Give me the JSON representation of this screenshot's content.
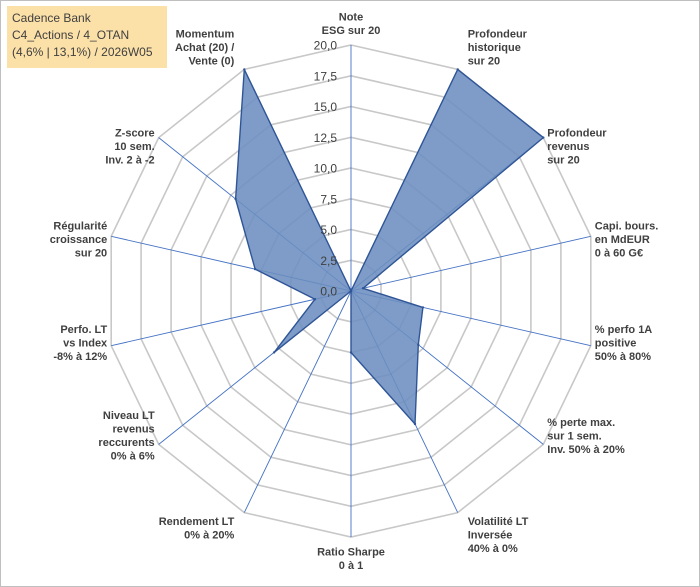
{
  "title_lines": [
    "Cadence Bank",
    "C4_Actions / 4_OTAN",
    "(4,6% | 13,1%) / 2026W05"
  ],
  "colors": {
    "fill": "#6c8ebf",
    "stroke": "#2f5597",
    "grid": "#c8c8c8",
    "spoke": "#4472c4",
    "title_bg": "#fbe0a8"
  },
  "chart_data": {
    "type": "radar",
    "title": "",
    "range": [
      0,
      20
    ],
    "tick_step": 2.5,
    "tick_labels": [
      "0,0",
      "2,5",
      "5,0",
      "7,5",
      "10,0",
      "12,5",
      "15,0",
      "17,5",
      "20,0"
    ],
    "axes": [
      {
        "lines": [
          "Note",
          "ESG sur 20"
        ]
      },
      {
        "lines": [
          "Profondeur",
          "historique",
          "sur 20"
        ]
      },
      {
        "lines": [
          "Profondeur",
          "revenus",
          "sur 20"
        ]
      },
      {
        "lines": [
          "Capi. bours.",
          "en MdEUR",
          "0 à 60 G€"
        ]
      },
      {
        "lines": [
          "% perfo 1A",
          "positive",
          "50% à 80%"
        ]
      },
      {
        "lines": [
          "% perte max.",
          "sur 1 sem.",
          "Inv. 50% à 20%"
        ]
      },
      {
        "lines": [
          "Volatilité LT",
          "Inversée",
          "40% à 0%"
        ]
      },
      {
        "lines": [
          "Ratio Sharpe",
          "0 à 1"
        ]
      },
      {
        "lines": [
          "Rendement LT",
          "0% à 20%"
        ]
      },
      {
        "lines": [
          "Niveau LT",
          "revenus",
          "reccurents",
          "0% à 6%"
        ]
      },
      {
        "lines": [
          "Perfo. LT",
          "vs Index",
          "-8% à 12%"
        ]
      },
      {
        "lines": [
          "Régularité",
          "croissance",
          "sur 20"
        ]
      },
      {
        "lines": [
          "Z-score",
          "10 sem.",
          "Inv. 2 à -2"
        ]
      },
      {
        "lines": [
          "Momentum",
          "Achat (20) /",
          "Vente (0)"
        ]
      }
    ],
    "series": [
      {
        "values": [
          0,
          20,
          20,
          1,
          6,
          7,
          12,
          5,
          0,
          8,
          3,
          8,
          12,
          20
        ]
      }
    ]
  }
}
